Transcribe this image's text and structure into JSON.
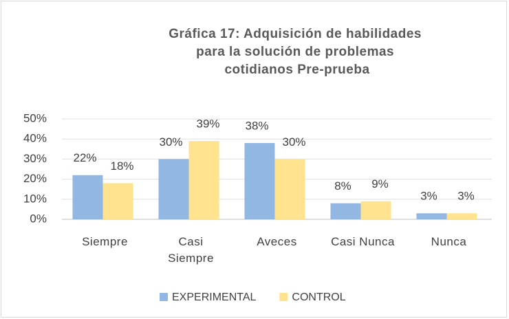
{
  "chart_data": {
    "type": "bar",
    "title": "Gráfica 17: Adquisición de habilidades para la solución de problemas cotidianos Pre-prueba",
    "categories": [
      "Siempre",
      "Casi Siempre",
      "Aveces",
      "Casi Nunca",
      "Nunca"
    ],
    "series": [
      {
        "name": "EXPERIMENTAL",
        "color": "#92b7e3",
        "values": [
          22,
          30,
          38,
          8,
          3
        ],
        "value_labels": [
          "22%",
          "30%",
          "38%",
          "8%",
          "3%"
        ]
      },
      {
        "name": "CONTROL",
        "color": "#ffe38f",
        "values": [
          18,
          39,
          30,
          9,
          3
        ],
        "value_labels": [
          "18%",
          "39%",
          "30%",
          "9%",
          "3%"
        ]
      }
    ],
    "ylim": [
      0,
      50
    ],
    "yticks": [
      {
        "value": 0,
        "label": "0%"
      },
      {
        "value": 10,
        "label": "10%"
      },
      {
        "value": 20,
        "label": "20%"
      },
      {
        "value": 30,
        "label": "30%"
      },
      {
        "value": 40,
        "label": "40%"
      },
      {
        "value": 50,
        "label": "50%"
      }
    ],
    "grid": true,
    "legend": "bottom"
  }
}
